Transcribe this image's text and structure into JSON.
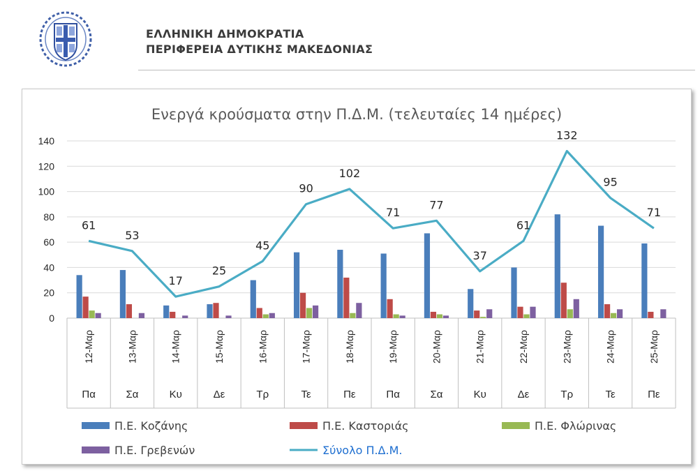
{
  "header": {
    "line1": "ΕΛΛΗΝΙΚΗ ΔΗΜΟΚΡΑΤΙΑ",
    "line2": "ΠΕΡΙΦΕΡΕΙΑ ΔΥΤΙΚΗΣ ΜΑΚΕΔΟΝΙΑΣ"
  },
  "chart_data": {
    "type": "bar",
    "title": "Ενεργά κρούσματα στην Π.Δ.Μ. (τελευταίες 14 ημέρες)",
    "categories": [
      "12-Μαρ",
      "13-Μαρ",
      "14-Μαρ",
      "15-Μαρ",
      "16-Μαρ",
      "17-Μαρ",
      "18-Μαρ",
      "19-Μαρ",
      "20-Μαρ",
      "21-Μαρ",
      "22-Μαρ",
      "23-Μαρ",
      "24-Μαρ",
      "25-Μαρ"
    ],
    "days": [
      "Πα",
      "Σα",
      "Κυ",
      "Δε",
      "Τρ",
      "Τε",
      "Πε",
      "Πα",
      "Σα",
      "Κυ",
      "Δε",
      "Τρ",
      "Τε",
      "Πε"
    ],
    "ylim": [
      0,
      140
    ],
    "yticks": [
      0,
      20,
      40,
      60,
      80,
      100,
      120,
      140
    ],
    "grid": true,
    "legend_position": "bottom",
    "series": [
      {
        "name": "Π.Ε. Κοζάνης",
        "type": "bar",
        "color": "#4a7ebb",
        "values": [
          34,
          38,
          10,
          11,
          30,
          52,
          54,
          51,
          67,
          23,
          40,
          82,
          73,
          59
        ]
      },
      {
        "name": "Π.Ε. Καστοριάς",
        "type": "bar",
        "color": "#be4b48",
        "values": [
          17,
          11,
          5,
          12,
          8,
          20,
          32,
          15,
          5,
          6,
          9,
          28,
          11,
          5
        ]
      },
      {
        "name": "Π.Ε. Φλώρινας",
        "type": "bar",
        "color": "#98b954",
        "values": [
          6,
          0,
          0,
          0,
          3,
          8,
          4,
          3,
          3,
          1,
          3,
          7,
          4,
          0
        ]
      },
      {
        "name": "Π.Ε. Γρεβενών",
        "type": "bar",
        "color": "#7d60a0",
        "values": [
          4,
          4,
          2,
          2,
          4,
          10,
          12,
          2,
          2,
          7,
          9,
          15,
          7,
          7
        ]
      },
      {
        "name": "Σύνολο Π.Δ.Μ.",
        "type": "line",
        "color": "#4aacc5",
        "data_labels": true,
        "values": [
          61,
          53,
          17,
          25,
          45,
          90,
          102,
          71,
          77,
          37,
          61,
          132,
          95,
          71
        ]
      }
    ]
  }
}
